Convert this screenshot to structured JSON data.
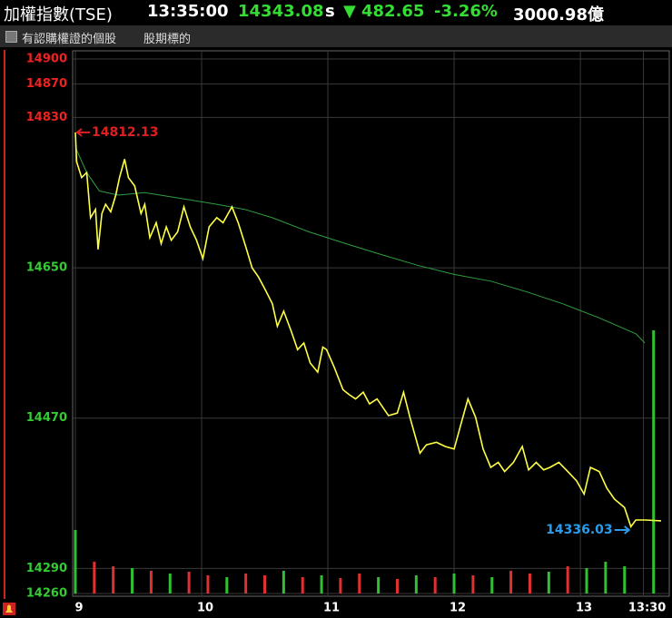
{
  "header": {
    "title": "加權指數(TSE)",
    "time": "13:35:00",
    "price": "14343.08",
    "price_suffix": "s",
    "change_arrow": "▼",
    "change": "482.65",
    "change_pct": "-3.26%",
    "volume": "3000.98億"
  },
  "toolbar": {
    "checkbox_label": "有認購權證的個股",
    "link": "股期標的"
  },
  "chart_data": {
    "type": "line",
    "xlim": [
      8.98,
      13.69
    ],
    "xticks": [
      9,
      10,
      11,
      12,
      13,
      {
        "value": 13.5,
        "label": "13:30"
      }
    ],
    "ylim": [
      14260,
      14900
    ],
    "yticks": [
      14260,
      14290,
      14470,
      14650,
      14830,
      14870,
      14900
    ],
    "ytick_colors": [
      "#33cc33",
      "#33cc33",
      "#33cc33",
      "#33cc33",
      "#ee2222",
      "#ee2222",
      "#ee2222"
    ],
    "grid": true,
    "series": [
      {
        "color": "#ffff44",
        "x": [
          9.0,
          9.01,
          9.05,
          9.09,
          9.12,
          9.16,
          9.18,
          9.21,
          9.24,
          9.28,
          9.32,
          9.35,
          9.39,
          9.42,
          9.47,
          9.52,
          9.55,
          9.59,
          9.64,
          9.68,
          9.72,
          9.76,
          9.81,
          9.86,
          9.91,
          9.96,
          10.01,
          10.06,
          10.12,
          10.17,
          10.24,
          10.29,
          10.35,
          10.4,
          10.45,
          10.5,
          10.56,
          10.6,
          10.65,
          10.71,
          10.76,
          10.81,
          10.86,
          10.92,
          10.96,
          10.99,
          11.05,
          11.12,
          11.17,
          11.22,
          11.28,
          11.33,
          11.39,
          11.48,
          11.55,
          11.6,
          11.65,
          11.73,
          11.78,
          11.86,
          11.93,
          12.0,
          12.06,
          12.11,
          12.17,
          12.23,
          12.29,
          12.35,
          12.4,
          12.47,
          12.54,
          12.59,
          12.65,
          12.71,
          12.76,
          12.83,
          12.9,
          12.97,
          13.03,
          13.08,
          13.15,
          13.21,
          13.27,
          13.35,
          13.4,
          13.44,
          13.51,
          13.64
        ],
        "values": [
          14812,
          14777,
          14758,
          14764,
          14710,
          14720,
          14672,
          14715,
          14726,
          14717,
          14737,
          14758,
          14780,
          14758,
          14748,
          14715,
          14726,
          14686,
          14704,
          14679,
          14699,
          14683,
          14693,
          14723,
          14699,
          14683,
          14661,
          14699,
          14710,
          14704,
          14723,
          14704,
          14675,
          14650,
          14639,
          14625,
          14607,
          14580,
          14598,
          14574,
          14552,
          14560,
          14536,
          14525,
          14555,
          14552,
          14531,
          14504,
          14498,
          14493,
          14501,
          14487,
          14493,
          14473,
          14476,
          14501,
          14471,
          14428,
          14438,
          14441,
          14436,
          14433,
          14466,
          14493,
          14471,
          14433,
          14411,
          14417,
          14406,
          14417,
          14436,
          14408,
          14417,
          14408,
          14411,
          14417,
          14406,
          14395,
          14379,
          14411,
          14406,
          14386,
          14373,
          14363,
          14340,
          14348,
          14348,
          14347
        ]
      },
      {
        "color": "#2e9e3e",
        "x": [
          9.01,
          9.09,
          9.19,
          9.34,
          9.55,
          9.84,
          10.12,
          10.34,
          10.56,
          10.85,
          11.14,
          11.42,
          11.71,
          12.0,
          12.29,
          12.58,
          12.86,
          13.15,
          13.44,
          13.51
        ],
        "values": [
          14791,
          14764,
          14742,
          14737,
          14740,
          14733,
          14726,
          14720,
          14710,
          14693,
          14679,
          14666,
          14653,
          14642,
          14634,
          14621,
          14607,
          14590,
          14571,
          14560
        ]
      }
    ],
    "volume": {
      "x": [
        9,
        9.15,
        9.3,
        9.45,
        9.6,
        9.75,
        9.9,
        10.05,
        10.2,
        10.35,
        10.5,
        10.65,
        10.8,
        10.95,
        11.1,
        11.25,
        11.4,
        11.55,
        11.7,
        11.85,
        12,
        12.15,
        12.3,
        12.45,
        12.6,
        12.75,
        12.9,
        13.05,
        13.2,
        13.35,
        13.58
      ],
      "values": [
        70,
        35,
        30,
        28,
        25,
        22,
        24,
        20,
        18,
        22,
        20,
        25,
        18,
        20,
        17,
        22,
        18,
        16,
        20,
        18,
        22,
        20,
        18,
        25,
        22,
        24,
        30,
        28,
        35,
        30,
        290
      ],
      "colors": [
        "#30c030",
        "#e03030",
        "#e03030",
        "#30c030",
        "#e03030",
        "#30c030",
        "#e03030",
        "#e03030",
        "#30c030",
        "#e03030",
        "#e03030",
        "#30c030",
        "#e03030",
        "#30c030",
        "#e03030",
        "#e03030",
        "#30c030",
        "#e03030",
        "#30c030",
        "#e03030",
        "#30c030",
        "#e03030",
        "#30c030",
        "#e03030",
        "#e03030",
        "#30c030",
        "#e03030",
        "#30c030",
        "#30c030",
        "#30c030",
        "#30c030"
      ]
    },
    "annotations": [
      {
        "label": "14812.13",
        "value": 14812.13,
        "x": 9.0,
        "color": "#e02020",
        "side": "right"
      },
      {
        "label": "14336.03",
        "value": 14336.03,
        "x": 13.4,
        "color": "#2a9be8",
        "side": "left"
      }
    ]
  }
}
